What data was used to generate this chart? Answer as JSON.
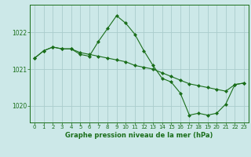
{
  "title": "Graphe pression niveau de la mer (hPa)",
  "background_color": "#cce8e8",
  "grid_color": "#aacccc",
  "line_color": "#1a6e1a",
  "marker_color": "#1a6e1a",
  "ylim": [
    1019.55,
    1022.75
  ],
  "yticks": [
    1020,
    1021,
    1022
  ],
  "xlim": [
    -0.5,
    23.5
  ],
  "xticks": [
    0,
    1,
    2,
    3,
    4,
    5,
    6,
    7,
    8,
    9,
    10,
    11,
    12,
    13,
    14,
    15,
    16,
    17,
    18,
    19,
    20,
    21,
    22,
    23
  ],
  "series1": {
    "x": [
      0,
      1,
      2,
      3,
      4,
      5,
      6,
      7,
      8,
      9,
      10,
      11,
      12,
      13,
      14,
      15,
      16,
      17,
      18,
      19,
      20,
      21,
      22,
      23
    ],
    "y": [
      1021.3,
      1021.5,
      1021.6,
      1021.55,
      1021.55,
      1021.45,
      1021.4,
      1021.35,
      1021.3,
      1021.25,
      1021.2,
      1021.1,
      1021.05,
      1021.0,
      1020.9,
      1020.8,
      1020.7,
      1020.6,
      1020.55,
      1020.5,
      1020.45,
      1020.4,
      1020.58,
      1020.62
    ]
  },
  "series2": {
    "x": [
      0,
      1,
      2,
      3,
      4,
      5,
      6,
      7,
      8,
      9,
      10,
      11,
      12,
      13,
      14,
      15,
      16,
      17,
      18,
      19,
      20,
      21,
      22,
      23
    ],
    "y": [
      1021.3,
      1021.5,
      1021.6,
      1021.55,
      1021.55,
      1021.4,
      1021.35,
      1021.75,
      1022.1,
      1022.45,
      1022.25,
      1021.95,
      1021.5,
      1021.1,
      1020.75,
      1020.65,
      1020.35,
      1019.75,
      1019.8,
      1019.75,
      1019.8,
      1020.05,
      1020.58,
      1020.62
    ]
  }
}
